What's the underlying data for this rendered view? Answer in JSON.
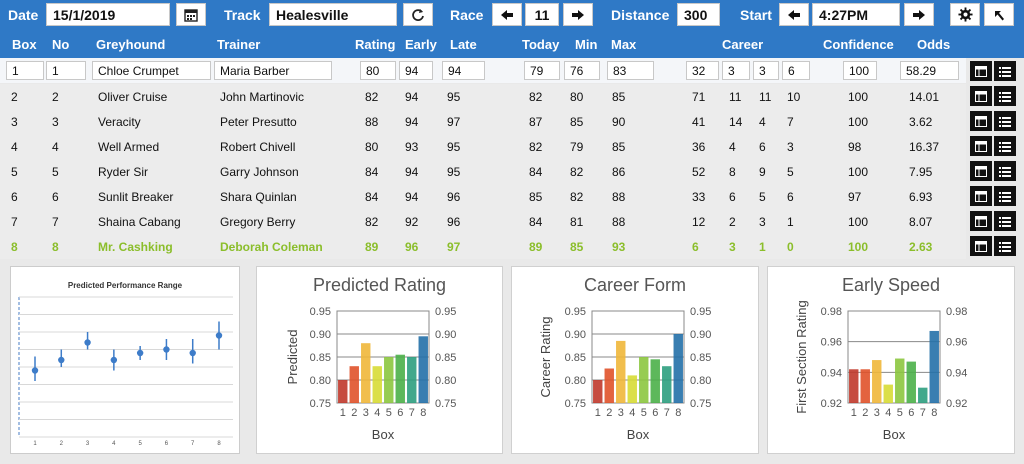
{
  "toolbar": {
    "date_label": "Date",
    "date_value": "15/1/2019",
    "track_label": "Track",
    "track_value": "Healesville",
    "race_label": "Race",
    "race_value": "11",
    "distance_label": "Distance",
    "distance_value": "300",
    "start_label": "Start",
    "start_value": "4:27PM"
  },
  "columns": {
    "box": "Box",
    "no": "No",
    "greyhound": "Greyhound",
    "trainer": "Trainer",
    "rating": "Rating",
    "early": "Early",
    "late": "Late",
    "today": "Today",
    "min": "Min",
    "max": "Max",
    "career": "Career",
    "confidence": "Confidence",
    "odds": "Odds"
  },
  "rows": [
    {
      "box": "1",
      "no": "1",
      "greyhound": "Chloe Crumpet",
      "trainer": "Maria Barber",
      "rating": "80",
      "early": "94",
      "late": "94",
      "today": "79",
      "min": "76",
      "max": "83",
      "c1": "32",
      "c2": "3",
      "c3": "3",
      "c4": "6",
      "confidence": "100",
      "odds": "58.29"
    },
    {
      "box": "2",
      "no": "2",
      "greyhound": "Oliver Cruise",
      "trainer": "John Martinovic",
      "rating": "82",
      "early": "94",
      "late": "95",
      "today": "82",
      "min": "80",
      "max": "85",
      "c1": "71",
      "c2": "11",
      "c3": "11",
      "c4": "10",
      "confidence": "100",
      "odds": "14.01"
    },
    {
      "box": "3",
      "no": "3",
      "greyhound": "Veracity",
      "trainer": "Peter Presutto",
      "rating": "88",
      "early": "94",
      "late": "97",
      "today": "87",
      "min": "85",
      "max": "90",
      "c1": "41",
      "c2": "14",
      "c3": "4",
      "c4": "7",
      "confidence": "100",
      "odds": "3.62"
    },
    {
      "box": "4",
      "no": "4",
      "greyhound": "Well Armed",
      "trainer": "Robert Chivell",
      "rating": "80",
      "early": "93",
      "late": "95",
      "today": "82",
      "min": "79",
      "max": "85",
      "c1": "36",
      "c2": "4",
      "c3": "6",
      "c4": "3",
      "confidence": "98",
      "odds": "16.37"
    },
    {
      "box": "5",
      "no": "5",
      "greyhound": "Ryder Sir",
      "trainer": "Garry Johnson",
      "rating": "84",
      "early": "94",
      "late": "95",
      "today": "84",
      "min": "82",
      "max": "86",
      "c1": "52",
      "c2": "8",
      "c3": "9",
      "c4": "5",
      "confidence": "100",
      "odds": "7.95"
    },
    {
      "box": "6",
      "no": "6",
      "greyhound": "Sunlit Breaker",
      "trainer": "Shara Quinlan",
      "rating": "84",
      "early": "94",
      "late": "96",
      "today": "85",
      "min": "82",
      "max": "88",
      "c1": "33",
      "c2": "6",
      "c3": "5",
      "c4": "6",
      "confidence": "97",
      "odds": "6.93"
    },
    {
      "box": "7",
      "no": "7",
      "greyhound": "Shaina Cabang",
      "trainer": "Gregory Berry",
      "rating": "82",
      "early": "92",
      "late": "96",
      "today": "84",
      "min": "81",
      "max": "88",
      "c1": "12",
      "c2": "2",
      "c3": "3",
      "c4": "1",
      "confidence": "100",
      "odds": "8.07"
    },
    {
      "box": "8",
      "no": "8",
      "greyhound": "Mr. Cashking",
      "trainer": "Deborah Coleman",
      "rating": "89",
      "early": "96",
      "late": "97",
      "today": "89",
      "min": "85",
      "max": "93",
      "c1": "6",
      "c2": "3",
      "c3": "1",
      "c4": "0",
      "confidence": "100",
      "odds": "2.63"
    }
  ],
  "colors": {
    "header_blue": "#2f79c6",
    "highlight_green": "#8bbe2b",
    "bar_colors": [
      "#c0392b",
      "#e0522a",
      "#f0b73a",
      "#d7dc35",
      "#8cc63f",
      "#4bb049",
      "#2e9f80",
      "#2370a8"
    ]
  },
  "icons": {
    "date": "calendar-icon",
    "refresh": "refresh-icon",
    "prev": "arrow-left-icon",
    "next": "arrow-right-icon",
    "settings": "gear-icon",
    "back": "return-icon",
    "table": "table-icon",
    "list": "list-icon"
  },
  "chart_data": [
    {
      "type": "scatter",
      "title": "Predicted Performance Range",
      "x": [
        1,
        2,
        3,
        4,
        5,
        6,
        7,
        8
      ],
      "y": [
        79,
        82,
        87,
        82,
        84,
        85,
        84,
        89
      ],
      "ymin": [
        76,
        80,
        85,
        79,
        82,
        82,
        81,
        85
      ],
      "ymax": [
        83,
        85,
        90,
        85,
        86,
        88,
        88,
        93
      ],
      "xlabels": [
        "1",
        "2",
        "3",
        "4",
        "5",
        "6",
        "7",
        "8"
      ],
      "ylim": [
        60,
        100
      ]
    },
    {
      "type": "bar",
      "title": "Predicted Rating",
      "categories": [
        "1",
        "2",
        "3",
        "4",
        "5",
        "6",
        "7",
        "8"
      ],
      "values": [
        0.8,
        0.83,
        0.88,
        0.83,
        0.85,
        0.855,
        0.85,
        0.895
      ],
      "xlabel": "Box",
      "ylabel": "Predicted",
      "ylim": [
        0.75,
        0.95
      ],
      "yticks": [
        "0.75",
        "0.80",
        "0.85",
        "0.90",
        "0.95"
      ]
    },
    {
      "type": "bar",
      "title": "Career Form",
      "categories": [
        "1",
        "2",
        "3",
        "4",
        "5",
        "6",
        "7",
        "8"
      ],
      "values": [
        0.8,
        0.825,
        0.885,
        0.81,
        0.85,
        0.845,
        0.83,
        0.9
      ],
      "xlabel": "Box",
      "ylabel": "Career Rating",
      "ylim": [
        0.75,
        0.95
      ],
      "yticks": [
        "0.75",
        "0.80",
        "0.85",
        "0.90",
        "0.95"
      ]
    },
    {
      "type": "bar",
      "title": "Early Speed",
      "categories": [
        "1",
        "2",
        "3",
        "4",
        "5",
        "6",
        "7",
        "8"
      ],
      "values": [
        0.942,
        0.942,
        0.948,
        0.932,
        0.949,
        0.947,
        0.93,
        0.967
      ],
      "xlabel": "Box",
      "ylabel": "First Section Rating",
      "ylim": [
        0.92,
        0.98
      ],
      "yticks": [
        "0.92",
        "0.94",
        "0.96",
        "0.98"
      ]
    }
  ]
}
